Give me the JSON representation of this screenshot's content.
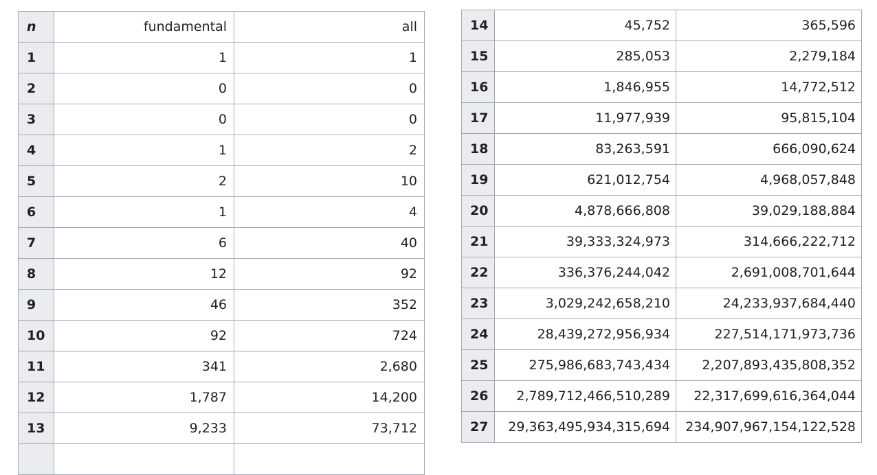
{
  "left_table": {
    "headers": [
      "n",
      "fundamental",
      "all"
    ],
    "rows": [
      [
        "1",
        "1",
        "1"
      ],
      [
        "2",
        "0",
        "0"
      ],
      [
        "3",
        "0",
        "0"
      ],
      [
        "4",
        "1",
        "2"
      ],
      [
        "5",
        "2",
        "10"
      ],
      [
        "6",
        "1",
        "4"
      ],
      [
        "7",
        "6",
        "40"
      ],
      [
        "8",
        "12",
        "92"
      ],
      [
        "9",
        "46",
        "352"
      ],
      [
        "10",
        "92",
        "724"
      ],
      [
        "11",
        "341",
        "2,680"
      ],
      [
        "12",
        "1,787",
        "14,200"
      ],
      [
        "13",
        "9,233",
        "73,712"
      ]
    ]
  },
  "right_table": {
    "rows": [
      [
        "14",
        "45,752",
        "365,596"
      ],
      [
        "15",
        "285,053",
        "2,279,184"
      ],
      [
        "16",
        "1,846,955",
        "14,772,512"
      ],
      [
        "17",
        "11,977,939",
        "95,815,104"
      ],
      [
        "18",
        "83,263,591",
        "666,090,624"
      ],
      [
        "19",
        "621,012,754",
        "4,968,057,848"
      ],
      [
        "20",
        "4,878,666,808",
        "39,029,188,884"
      ],
      [
        "21",
        "39,333,324,973",
        "314,666,222,712"
      ],
      [
        "22",
        "336,376,244,042",
        "2,691,008,701,644"
      ],
      [
        "23",
        "3,029,242,658,210",
        "24,233,937,684,440"
      ],
      [
        "24",
        "28,439,272,956,934",
        "227,514,171,973,736"
      ],
      [
        "25",
        "275,986,683,743,434",
        "2,207,893,435,808,352"
      ],
      [
        "26",
        "2,789,712,466,510,289",
        "22,317,699,616,364,044"
      ],
      [
        "27",
        "29,363,495,934,315,694",
        "234,907,967,154,122,528"
      ]
    ]
  }
}
